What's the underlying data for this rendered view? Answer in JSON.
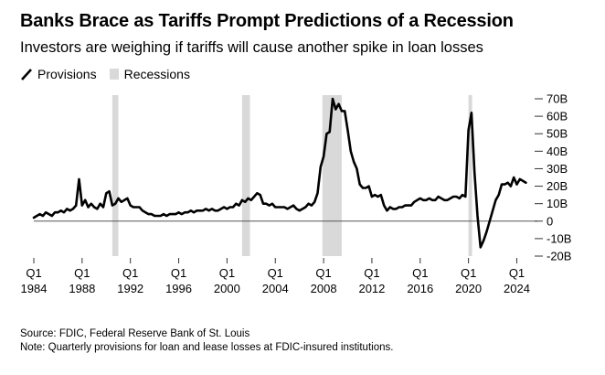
{
  "title": "Banks Brace as Tariffs Prompt Predictions of a Recession",
  "subtitle": "Investors are weighing if tariffs will cause another spike in loan losses",
  "legend": {
    "series": "Provisions",
    "shade": "Recessions"
  },
  "source": "Source: FDIC, Federal Reserve Bank of St. Louis",
  "note": "Note: Quarterly provisions for loan and lease losses at FDIC-insured institutions.",
  "colors": {
    "line": "#000000",
    "recession": "#d9d9d9",
    "zero_line": "#555555"
  },
  "chart_data": {
    "type": "line",
    "title": "Banks Brace as Tariffs Prompt Predictions of a Recession",
    "xlabel": "",
    "ylabel": "",
    "unit": "B",
    "ylim": [
      -20,
      70
    ],
    "xlim": [
      1984.0,
      2025.25
    ],
    "yticks": [
      {
        "value": 70,
        "label": "70B"
      },
      {
        "value": 60,
        "label": "60B"
      },
      {
        "value": 50,
        "label": "50B"
      },
      {
        "value": 40,
        "label": "40B"
      },
      {
        "value": 30,
        "label": "30B"
      },
      {
        "value": 20,
        "label": "20B"
      },
      {
        "value": 10,
        "label": "10B"
      },
      {
        "value": 0,
        "label": "0"
      },
      {
        "value": -10,
        "label": "-10B"
      },
      {
        "value": -20,
        "label": "-20B"
      }
    ],
    "xticks": [
      {
        "value": 1984,
        "q": "Q1",
        "year": "1984"
      },
      {
        "value": 1988,
        "q": "Q1",
        "year": "1988"
      },
      {
        "value": 1992,
        "q": "Q1",
        "year": "1992"
      },
      {
        "value": 1996,
        "q": "Q1",
        "year": "1996"
      },
      {
        "value": 2000,
        "q": "Q1",
        "year": "2000"
      },
      {
        "value": 2004,
        "q": "Q1",
        "year": "2004"
      },
      {
        "value": 2008,
        "q": "Q1",
        "year": "2008"
      },
      {
        "value": 2012,
        "q": "Q1",
        "year": "2012"
      },
      {
        "value": 2016,
        "q": "Q1",
        "year": "2016"
      },
      {
        "value": 2020,
        "q": "Q1",
        "year": "2020"
      },
      {
        "value": 2024,
        "q": "Q1",
        "year": "2024"
      }
    ],
    "recessions": [
      [
        1990.5,
        1991.0
      ],
      [
        2001.25,
        2001.9
      ],
      [
        2007.9,
        2009.5
      ],
      [
        2020.0,
        2020.3
      ]
    ],
    "series": [
      {
        "name": "Provisions",
        "points": [
          [
            1984.0,
            2
          ],
          [
            1984.25,
            3
          ],
          [
            1984.5,
            4
          ],
          [
            1984.75,
            3
          ],
          [
            1985.0,
            5
          ],
          [
            1985.25,
            4
          ],
          [
            1985.5,
            3
          ],
          [
            1985.75,
            5
          ],
          [
            1986.0,
            5
          ],
          [
            1986.25,
            6
          ],
          [
            1986.5,
            5
          ],
          [
            1986.75,
            7
          ],
          [
            1987.0,
            6
          ],
          [
            1987.25,
            7
          ],
          [
            1987.5,
            9
          ],
          [
            1987.75,
            24
          ],
          [
            1988.0,
            9
          ],
          [
            1988.25,
            12
          ],
          [
            1988.5,
            8
          ],
          [
            1988.75,
            10
          ],
          [
            1989.0,
            8
          ],
          [
            1989.25,
            7
          ],
          [
            1989.5,
            10
          ],
          [
            1989.75,
            8
          ],
          [
            1990.0,
            16
          ],
          [
            1990.25,
            17
          ],
          [
            1990.5,
            9
          ],
          [
            1990.75,
            10
          ],
          [
            1991.0,
            13
          ],
          [
            1991.25,
            11
          ],
          [
            1991.5,
            12
          ],
          [
            1991.75,
            13
          ],
          [
            1992.0,
            9
          ],
          [
            1992.25,
            8
          ],
          [
            1992.5,
            8
          ],
          [
            1992.75,
            8
          ],
          [
            1993.0,
            6
          ],
          [
            1993.25,
            5
          ],
          [
            1993.5,
            4
          ],
          [
            1993.75,
            4
          ],
          [
            1994.0,
            3
          ],
          [
            1994.25,
            3
          ],
          [
            1994.5,
            3
          ],
          [
            1994.75,
            4
          ],
          [
            1995.0,
            3
          ],
          [
            1995.25,
            4
          ],
          [
            1995.5,
            4
          ],
          [
            1995.75,
            4
          ],
          [
            1996.0,
            5
          ],
          [
            1996.25,
            4
          ],
          [
            1996.5,
            5
          ],
          [
            1996.75,
            5
          ],
          [
            1997.0,
            6
          ],
          [
            1997.25,
            5
          ],
          [
            1997.5,
            6
          ],
          [
            1997.75,
            6
          ],
          [
            1998.0,
            6
          ],
          [
            1998.25,
            7
          ],
          [
            1998.5,
            6
          ],
          [
            1998.75,
            7
          ],
          [
            1999.0,
            6
          ],
          [
            1999.25,
            6
          ],
          [
            1999.5,
            7
          ],
          [
            1999.75,
            8
          ],
          [
            2000.0,
            7
          ],
          [
            2000.25,
            8
          ],
          [
            2000.5,
            8
          ],
          [
            2000.75,
            10
          ],
          [
            2001.0,
            9
          ],
          [
            2001.25,
            12
          ],
          [
            2001.5,
            11
          ],
          [
            2001.75,
            13
          ],
          [
            2002.0,
            12
          ],
          [
            2002.25,
            14
          ],
          [
            2002.5,
            16
          ],
          [
            2002.75,
            15
          ],
          [
            2003.0,
            10
          ],
          [
            2003.25,
            10
          ],
          [
            2003.5,
            9
          ],
          [
            2003.75,
            10
          ],
          [
            2004.0,
            8
          ],
          [
            2004.25,
            8
          ],
          [
            2004.5,
            8
          ],
          [
            2004.75,
            8
          ],
          [
            2005.0,
            7
          ],
          [
            2005.25,
            8
          ],
          [
            2005.5,
            9
          ],
          [
            2005.75,
            7
          ],
          [
            2006.0,
            6
          ],
          [
            2006.25,
            7
          ],
          [
            2006.5,
            8
          ],
          [
            2006.75,
            10
          ],
          [
            2007.0,
            9
          ],
          [
            2007.25,
            11
          ],
          [
            2007.5,
            16
          ],
          [
            2007.75,
            31
          ],
          [
            2008.0,
            37
          ],
          [
            2008.25,
            50
          ],
          [
            2008.5,
            51
          ],
          [
            2008.75,
            70
          ],
          [
            2009.0,
            64
          ],
          [
            2009.25,
            67
          ],
          [
            2009.5,
            63
          ],
          [
            2009.75,
            63
          ],
          [
            2010.0,
            52
          ],
          [
            2010.25,
            40
          ],
          [
            2010.5,
            34
          ],
          [
            2010.75,
            30
          ],
          [
            2011.0,
            21
          ],
          [
            2011.25,
            19
          ],
          [
            2011.5,
            19
          ],
          [
            2011.75,
            20
          ],
          [
            2012.0,
            14
          ],
          [
            2012.25,
            15
          ],
          [
            2012.5,
            14
          ],
          [
            2012.75,
            15
          ],
          [
            2013.0,
            9
          ],
          [
            2013.25,
            6
          ],
          [
            2013.5,
            8
          ],
          [
            2013.75,
            7
          ],
          [
            2014.0,
            7
          ],
          [
            2014.25,
            8
          ],
          [
            2014.5,
            8
          ],
          [
            2014.75,
            9
          ],
          [
            2015.0,
            9
          ],
          [
            2015.25,
            9
          ],
          [
            2015.5,
            11
          ],
          [
            2015.75,
            12
          ],
          [
            2016.0,
            13
          ],
          [
            2016.25,
            12
          ],
          [
            2016.5,
            12
          ],
          [
            2016.75,
            13
          ],
          [
            2017.0,
            12
          ],
          [
            2017.25,
            12
          ],
          [
            2017.5,
            14
          ],
          [
            2017.75,
            13
          ],
          [
            2018.0,
            12
          ],
          [
            2018.25,
            12
          ],
          [
            2018.5,
            13
          ],
          [
            2018.75,
            14
          ],
          [
            2019.0,
            14
          ],
          [
            2019.25,
            13
          ],
          [
            2019.5,
            15
          ],
          [
            2019.75,
            14
          ],
          [
            2020.0,
            52
          ],
          [
            2020.25,
            62
          ],
          [
            2020.5,
            28
          ],
          [
            2020.75,
            3
          ],
          [
            2021.0,
            -15
          ],
          [
            2021.25,
            -11
          ],
          [
            2021.5,
            -6
          ],
          [
            2021.75,
            0
          ],
          [
            2022.0,
            6
          ],
          [
            2022.25,
            12
          ],
          [
            2022.5,
            15
          ],
          [
            2022.75,
            21
          ],
          [
            2023.0,
            21
          ],
          [
            2023.25,
            22
          ],
          [
            2023.5,
            20
          ],
          [
            2023.75,
            25
          ],
          [
            2024.0,
            21
          ],
          [
            2024.25,
            24
          ],
          [
            2024.5,
            23
          ],
          [
            2024.75,
            22
          ]
        ]
      }
    ]
  }
}
